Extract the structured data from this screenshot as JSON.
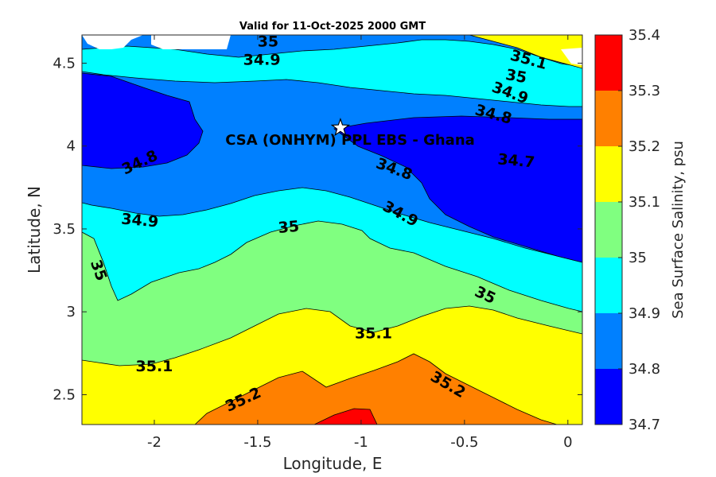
{
  "chart_data": {
    "type": "contour",
    "title": "Valid for 11-Oct-2025 2000 GMT",
    "xlabel": "Longitude, E",
    "ylabel": "Latitude, N",
    "xlim": [
      -2.35,
      0.07
    ],
    "ylim": [
      2.32,
      4.67
    ],
    "x_ticks": [
      -2,
      -1.5,
      -1,
      -0.5,
      0
    ],
    "y_ticks": [
      2.5,
      3,
      3.5,
      4,
      4.5
    ],
    "colorbar": {
      "label": "Sea Surface Salinity, psu",
      "ticks": [
        34.7,
        34.8,
        34.9,
        35,
        35.1,
        35.2,
        35.3,
        35.4
      ],
      "levels": [
        {
          "range": [
            34.7,
            34.8
          ],
          "color": "#0000ff"
        },
        {
          "range": [
            34.8,
            34.9
          ],
          "color": "#0080ff"
        },
        {
          "range": [
            34.9,
            35.0
          ],
          "color": "#00ffff"
        },
        {
          "range": [
            35.0,
            35.1
          ],
          "color": "#80ff80"
        },
        {
          "range": [
            35.1,
            35.2
          ],
          "color": "#ffff00"
        },
        {
          "range": [
            35.2,
            35.3
          ],
          "color": "#ff8000"
        },
        {
          "range": [
            35.3,
            35.4
          ],
          "color": "#ff0000"
        }
      ]
    },
    "site": {
      "name": "CSA (ONHYM) PPL EBS  - Ghana",
      "lon": -1.1,
      "lat": 4.11
    },
    "contour_labels": [
      {
        "text": "35",
        "lon": -1.45,
        "lat": 4.63,
        "angle": 0
      },
      {
        "text": "34.9",
        "lon": -1.48,
        "lat": 4.52,
        "angle": 0
      },
      {
        "text": "35.1",
        "lon": -0.19,
        "lat": 4.52,
        "angle": 15
      },
      {
        "text": "35",
        "lon": -0.25,
        "lat": 4.42,
        "angle": 10
      },
      {
        "text": "34.9",
        "lon": -0.28,
        "lat": 4.32,
        "angle": 20
      },
      {
        "text": "34.8",
        "lon": -0.36,
        "lat": 4.19,
        "angle": 15
      },
      {
        "text": "34.7",
        "lon": -0.25,
        "lat": 3.91,
        "angle": 5
      },
      {
        "text": "34.8",
        "lon": -2.07,
        "lat": 3.9,
        "angle": -25
      },
      {
        "text": "34.8",
        "lon": -0.84,
        "lat": 3.86,
        "angle": 20
      },
      {
        "text": "34.9",
        "lon": -2.07,
        "lat": 3.55,
        "angle": 5
      },
      {
        "text": "34.9",
        "lon": -0.81,
        "lat": 3.59,
        "angle": 28
      },
      {
        "text": "35",
        "lon": -1.35,
        "lat": 3.51,
        "angle": -5
      },
      {
        "text": "35",
        "lon": -2.27,
        "lat": 3.25,
        "angle": 70
      },
      {
        "text": "35",
        "lon": -0.4,
        "lat": 3.1,
        "angle": 25
      },
      {
        "text": "35.1",
        "lon": -0.94,
        "lat": 2.87,
        "angle": 0
      },
      {
        "text": "35.1",
        "lon": -2.0,
        "lat": 2.67,
        "angle": 0
      },
      {
        "text": "35.2",
        "lon": -1.57,
        "lat": 2.47,
        "angle": -25
      },
      {
        "text": "35.2",
        "lon": -0.58,
        "lat": 2.56,
        "angle": 30
      }
    ]
  }
}
